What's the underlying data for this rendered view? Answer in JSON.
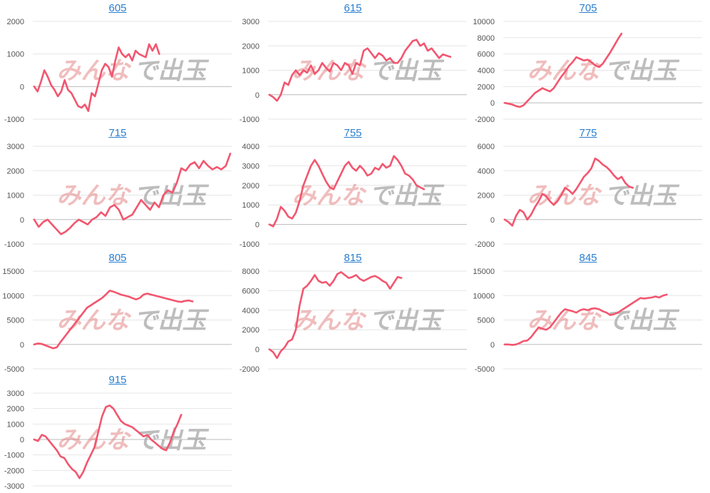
{
  "watermark": {
    "part1": "みんな",
    "part2": "で出玉",
    "color1": "#e06f6f",
    "color2": "#9a9a9a"
  },
  "colors": {
    "line": "#f2566f",
    "title_link": "#2a7fd0",
    "grid": "#e6e6e6"
  },
  "chart_data": [
    {
      "type": "line",
      "title": "605",
      "yticks": [
        -1000,
        0,
        1000,
        2000
      ],
      "ylim": [
        -1000,
        2000
      ],
      "values": [
        0,
        -150,
        150,
        500,
        300,
        50,
        -100,
        -300,
        -150,
        200,
        -100,
        -200,
        -400,
        -600,
        -650,
        -550,
        -750,
        -200,
        -300,
        100,
        500,
        700,
        600,
        300,
        800,
        1200,
        1000,
        900,
        1000,
        800,
        1100,
        1000,
        950,
        900,
        1300,
        1100,
        1300,
        1000
      ],
      "xmax": 58
    },
    {
      "type": "line",
      "title": "615",
      "yticks": [
        -1000,
        0,
        1000,
        2000,
        3000
      ],
      "ylim": [
        -1000,
        3000
      ],
      "values": [
        0,
        -100,
        -250,
        0,
        500,
        400,
        800,
        1000,
        800,
        1000,
        900,
        1200,
        850,
        1000,
        1300,
        1100,
        950,
        1300,
        1200,
        1000,
        1300,
        1200,
        850,
        1300,
        1200,
        1800,
        1900,
        1700,
        1500,
        1700,
        1600,
        1400,
        1500,
        1300,
        1300,
        1500,
        1800,
        2000,
        2200,
        2250,
        2000,
        2100,
        1800,
        1900,
        1700,
        1500,
        1650,
        1600,
        1550
      ],
      "xmax": 52
    },
    {
      "type": "line",
      "title": "705",
      "yticks": [
        -2000,
        0,
        2000,
        4000,
        6000,
        8000,
        10000
      ],
      "ylim": [
        -2000,
        10000
      ],
      "values": [
        0,
        -100,
        -200,
        -400,
        -500,
        -300,
        200,
        700,
        1200,
        1500,
        1800,
        1600,
        1400,
        1800,
        2500,
        3200,
        3800,
        4500,
        5000,
        5600,
        5400,
        5200,
        5300,
        5000,
        4600,
        4400,
        4800,
        5500,
        6200,
        7000,
        7800,
        8500
      ],
      "xmax": 52
    },
    {
      "type": "line",
      "title": "715",
      "yticks": [
        -1000,
        0,
        1000,
        2000,
        3000
      ],
      "ylim": [
        -1000,
        3000
      ],
      "values": [
        0,
        -300,
        -100,
        0,
        -200,
        -400,
        -600,
        -500,
        -350,
        -150,
        0,
        -100,
        -200,
        0,
        100,
        300,
        150,
        500,
        600,
        400,
        0,
        100,
        200,
        500,
        800,
        600,
        400,
        700,
        500,
        1000,
        1200,
        1100,
        1500,
        2100,
        2000,
        2250,
        2350,
        2100,
        2400,
        2200,
        2050,
        2150,
        2050,
        2200,
        2700
      ],
      "xmax": 44
    },
    {
      "type": "line",
      "title": "755",
      "yticks": [
        -1000,
        0,
        1000,
        2000,
        3000,
        4000
      ],
      "ylim": [
        -1000,
        4000
      ],
      "values": [
        0,
        -100,
        300,
        900,
        700,
        400,
        300,
        600,
        1200,
        2000,
        2500,
        3000,
        3300,
        3000,
        2600,
        2200,
        1900,
        1800,
        2200,
        2600,
        3000,
        3200,
        2900,
        2750,
        3000,
        2800,
        2500,
        2600,
        2900,
        2800,
        3100,
        2900,
        3000,
        3500,
        3300,
        3000,
        2600,
        2500,
        2300,
        2000,
        1900,
        1800
      ],
      "xmax": 52
    },
    {
      "type": "line",
      "title": "775",
      "yticks": [
        -2000,
        0,
        2000,
        4000,
        6000
      ],
      "ylim": [
        -2000,
        6000
      ],
      "values": [
        0,
        -200,
        -500,
        300,
        800,
        600,
        0,
        400,
        1000,
        1500,
        2100,
        1900,
        1500,
        1200,
        1500,
        2000,
        2600,
        2400,
        2100,
        2500,
        3000,
        3500,
        3800,
        4200,
        5000,
        4800,
        4500,
        4300,
        4000,
        3600,
        3300,
        3500,
        3000,
        2700,
        2600
      ],
      "xmax": 52
    },
    {
      "type": "line",
      "title": "805",
      "yticks": [
        -5000,
        0,
        5000,
        10000,
        15000
      ],
      "ylim": [
        -5000,
        15000
      ],
      "values": [
        0,
        200,
        100,
        -200,
        -500,
        -800,
        -600,
        500,
        1500,
        2500,
        3500,
        4500,
        5500,
        6500,
        7500,
        8000,
        8500,
        9000,
        9500,
        10200,
        11000,
        10800,
        10500,
        10200,
        10000,
        9800,
        9500,
        9200,
        9500,
        10200,
        10400,
        10200,
        10000,
        9800,
        9600,
        9400,
        9200,
        9000,
        8800,
        8700,
        8900,
        9000,
        8800
      ],
      "xmax": 52
    },
    {
      "type": "line",
      "title": "815",
      "yticks": [
        -2000,
        0,
        2000,
        4000,
        6000,
        8000
      ],
      "ylim": [
        -2000,
        8000
      ],
      "values": [
        0,
        -300,
        -900,
        -200,
        200,
        800,
        1000,
        2000,
        4500,
        6200,
        6500,
        7000,
        7600,
        7000,
        6800,
        6900,
        6500,
        7000,
        7700,
        7900,
        7600,
        7300,
        7400,
        7600,
        7200,
        7000,
        7200,
        7400,
        7500,
        7300,
        7000,
        6800,
        6200,
        6800,
        7400,
        7300
      ],
      "xmax": 52
    },
    {
      "type": "line",
      "title": "845",
      "yticks": [
        -5000,
        0,
        5000,
        10000,
        15000
      ],
      "ylim": [
        -5000,
        15000
      ],
      "values": [
        0,
        0,
        -100,
        0,
        300,
        700,
        800,
        1500,
        2500,
        3500,
        3200,
        3000,
        3500,
        4500,
        5500,
        6500,
        7200,
        7000,
        6800,
        6500,
        7000,
        7200,
        7000,
        7300,
        7400,
        7200,
        6800,
        6500,
        6000,
        6200,
        6500,
        7000,
        7500,
        8000,
        8500,
        9000,
        9500,
        9400,
        9500,
        9600,
        9800,
        9600,
        10000,
        10200
      ],
      "xmax": 52
    },
    {
      "type": "line",
      "title": "915",
      "yticks": [
        -3000,
        -2000,
        -1000,
        0,
        1000,
        2000,
        3000
      ],
      "ylim": [
        -3000,
        3000
      ],
      "values": [
        0,
        -100,
        300,
        200,
        -100,
        -400,
        -700,
        -1100,
        -1200,
        -1600,
        -1900,
        -2100,
        -2500,
        -2100,
        -1500,
        -1000,
        -500,
        500,
        1500,
        2100,
        2200,
        2000,
        1600,
        1200,
        1000,
        900,
        800,
        600,
        400,
        200,
        300,
        0,
        -200,
        -400,
        -600,
        -700,
        -200,
        500,
        1000,
        1600
      ],
      "xmax": 52
    }
  ]
}
